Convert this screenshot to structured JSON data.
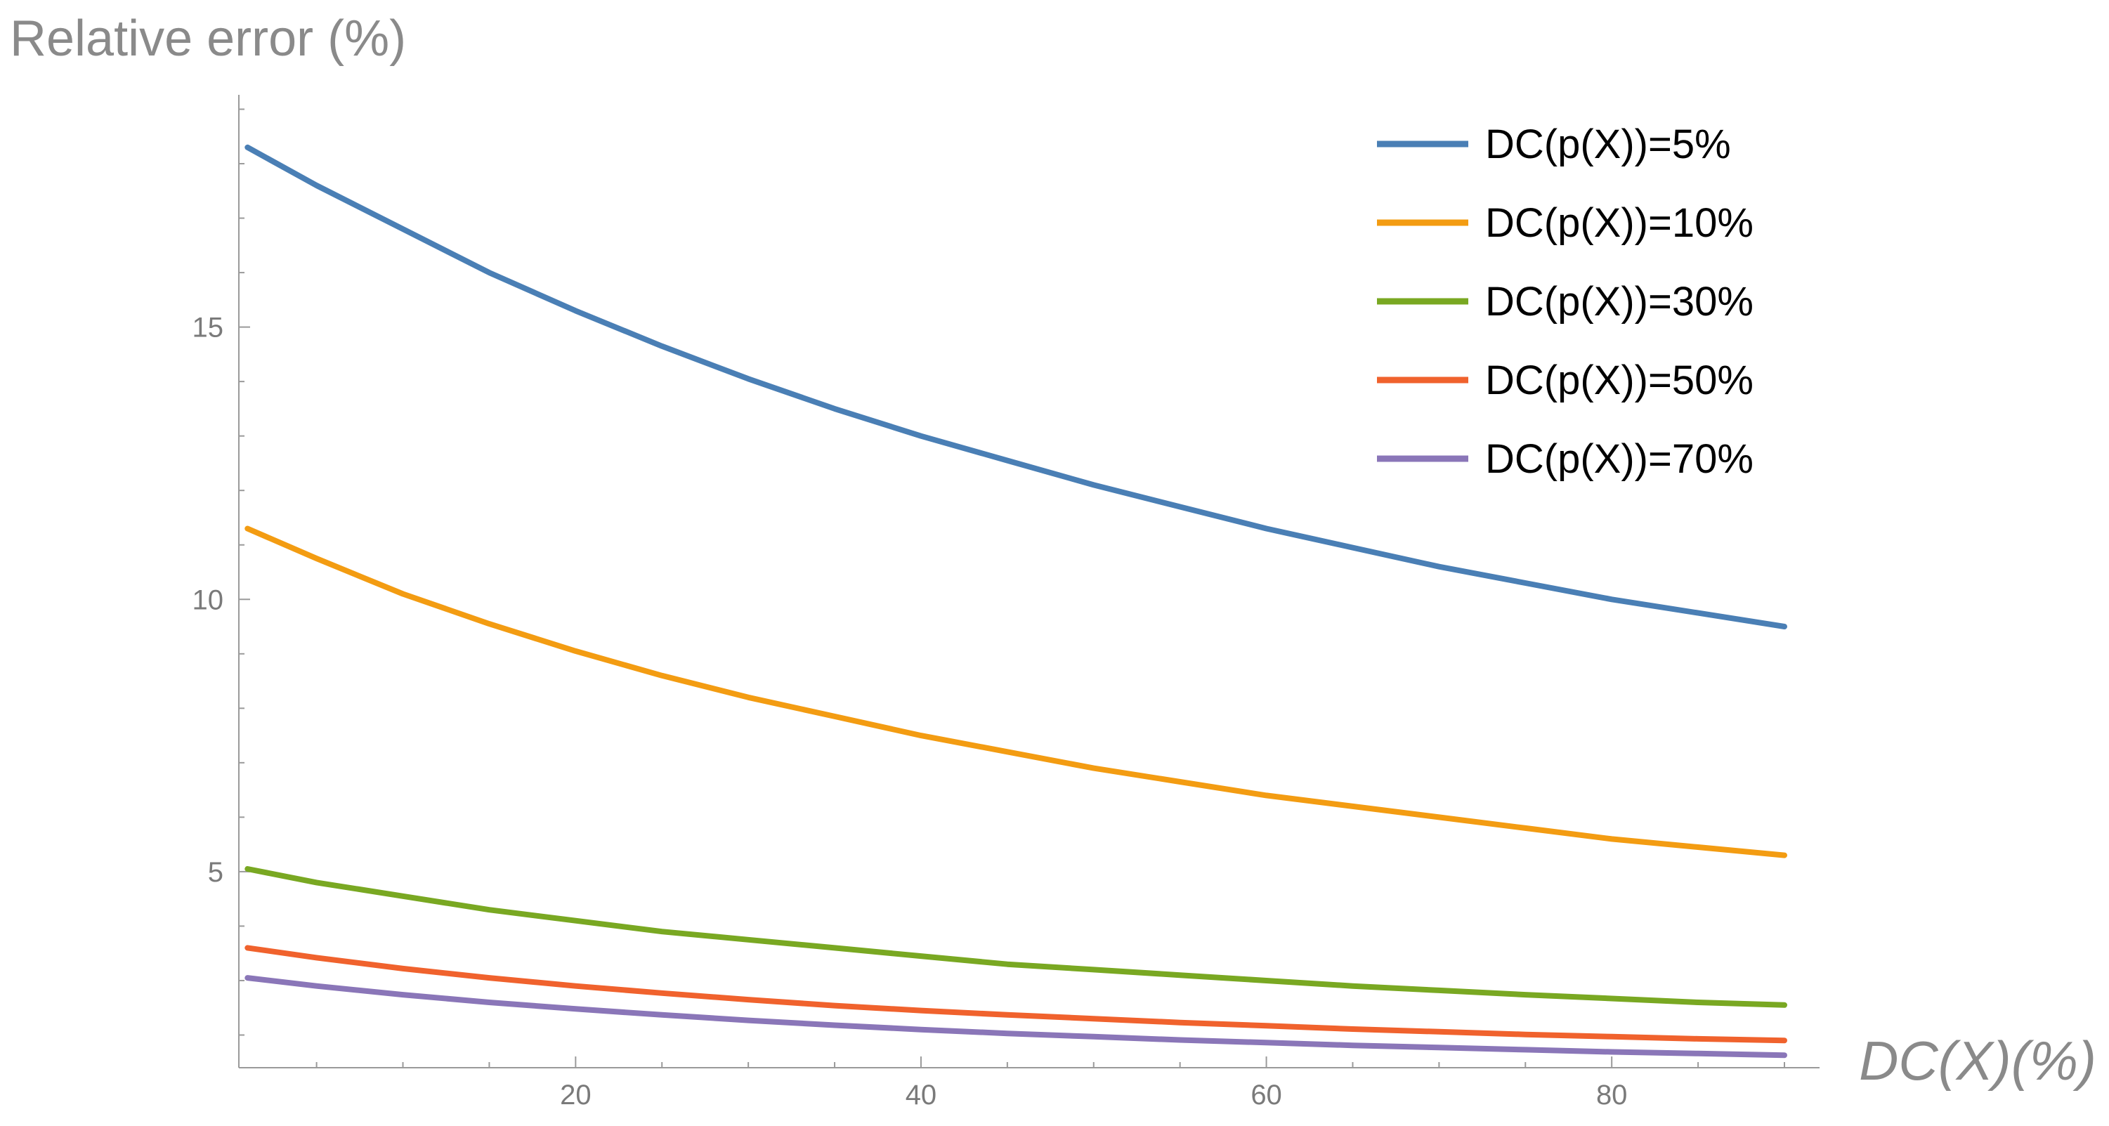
{
  "chart_data": {
    "type": "line",
    "ylabel": "Relative error (%)",
    "xlabel": "DC(X)(%)",
    "xlim": [
      0.5,
      90
    ],
    "ylim": [
      1.4,
      19.2
    ],
    "x_ticks": [
      20,
      40,
      60,
      80
    ],
    "y_ticks": [
      5,
      10,
      15
    ],
    "x_minor_step": 5,
    "y_minor_step": 1,
    "grid": false,
    "legend_position": "top-right",
    "x": [
      1,
      5,
      10,
      15,
      20,
      25,
      30,
      35,
      40,
      45,
      50,
      55,
      60,
      65,
      70,
      75,
      80,
      85,
      90
    ],
    "series": [
      {
        "name": "DC(p(X))=5%",
        "color": "#4a7fb5",
        "values": [
          18.3,
          17.6,
          16.8,
          16.0,
          15.3,
          14.65,
          14.05,
          13.5,
          13.0,
          12.55,
          12.1,
          11.7,
          11.3,
          10.95,
          10.6,
          10.3,
          10.0,
          9.75,
          9.5
        ]
      },
      {
        "name": "DC(p(X))=10%",
        "color": "#f39c12",
        "values": [
          11.3,
          10.75,
          10.1,
          9.55,
          9.05,
          8.6,
          8.2,
          7.85,
          7.5,
          7.2,
          6.9,
          6.65,
          6.4,
          6.2,
          6.0,
          5.8,
          5.6,
          5.45,
          5.3
        ]
      },
      {
        "name": "DC(p(X))=30%",
        "color": "#79a822",
        "values": [
          5.05,
          4.8,
          4.55,
          4.3,
          4.1,
          3.9,
          3.75,
          3.6,
          3.45,
          3.3,
          3.2,
          3.1,
          3.0,
          2.9,
          2.82,
          2.74,
          2.67,
          2.6,
          2.55
        ]
      },
      {
        "name": "DC(p(X))=50%",
        "color": "#f0622d",
        "values": [
          3.6,
          3.42,
          3.22,
          3.05,
          2.9,
          2.77,
          2.65,
          2.54,
          2.45,
          2.37,
          2.3,
          2.23,
          2.17,
          2.11,
          2.06,
          2.01,
          1.97,
          1.93,
          1.9
        ]
      },
      {
        "name": "DC(p(X))=70%",
        "color": "#8a76b8",
        "values": [
          3.05,
          2.9,
          2.74,
          2.6,
          2.48,
          2.37,
          2.27,
          2.18,
          2.1,
          2.03,
          1.97,
          1.91,
          1.86,
          1.81,
          1.77,
          1.73,
          1.69,
          1.66,
          1.63
        ]
      }
    ]
  }
}
